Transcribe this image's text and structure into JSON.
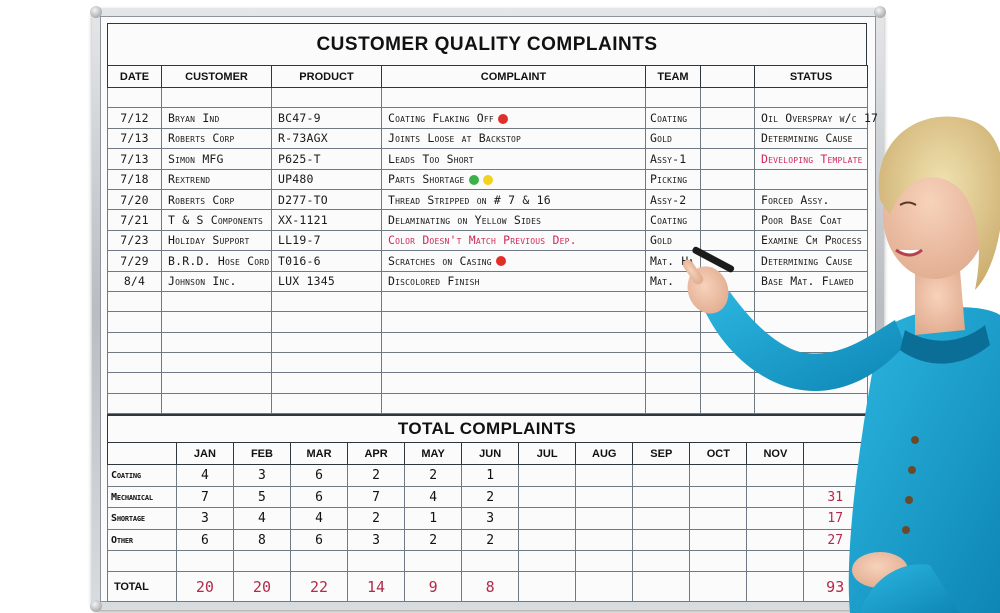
{
  "board": {
    "title": "CUSTOMER QUALITY COMPLAINTS",
    "headers": {
      "date": "DATE",
      "customer": "CUSTOMER",
      "product": "PRODUCT",
      "complaint": "COMPLAINT",
      "team": "TEAM",
      "extra": "",
      "status": "STATUS"
    },
    "rows": [
      {
        "date": "7/12",
        "customer": "Bryan Ind",
        "product": "BC47-9",
        "complaint": "Coating Flaking Off",
        "team": "Coating",
        "status": "Oil Overspray w/c 17"
      },
      {
        "date": "7/13",
        "customer": "Roberts Corp",
        "product": "R-73AGX",
        "complaint": "Joints Loose at Backstop",
        "team": "Gold",
        "status": "Determining Cause"
      },
      {
        "date": "7/13",
        "customer": "Simon MFG",
        "product": "P625-T",
        "complaint": "Leads Too Short",
        "team": "Assy-1",
        "status": "Developing Template"
      },
      {
        "date": "7/18",
        "customer": "Rextrend",
        "product": "UP480",
        "complaint": "Parts Shortage",
        "team": "Picking",
        "status": ""
      },
      {
        "date": "7/20",
        "customer": "Roberts Corp",
        "product": "D277-TO",
        "complaint": "Thread Stripped on # 7 & 16",
        "team": "Assy-2",
        "status": "Forced Assy."
      },
      {
        "date": "7/21",
        "customer": "T & S Components",
        "product": "XX-1121",
        "complaint": "Delaminating on Yellow Sides",
        "team": "Coating",
        "status": "Poor Base Coat"
      },
      {
        "date": "7/23",
        "customer": "Holiday Support",
        "product": "LL19-7",
        "complaint": "Color Doesn't Match Previous Dep.",
        "team": "Gold",
        "status": "Examine Cm Process"
      },
      {
        "date": "7/29",
        "customer": "B.R.D. Hose Cord",
        "product": "T016-6",
        "complaint": "Scratches on Casing",
        "team": "Mat. Ha",
        "status": "Determining Cause"
      },
      {
        "date": "8/4",
        "customer": "Johnson Inc.",
        "product": "LUX 1345",
        "complaint": "Discolored Finish",
        "team": "Mat.",
        "status": "Base Mat. Flawed"
      }
    ],
    "total_title": "TOTAL COMPLAINTS",
    "months": [
      "JAN",
      "FEB",
      "MAR",
      "APR",
      "MAY",
      "JUN",
      "JUL",
      "AUG",
      "SEP",
      "OCT",
      "NOV"
    ],
    "categories": [
      {
        "label": "Coating",
        "values": [
          "4",
          "3",
          "6",
          "2",
          "2",
          "1"
        ],
        "total": ""
      },
      {
        "label": "Mechanical",
        "values": [
          "7",
          "5",
          "6",
          "7",
          "4",
          "2"
        ],
        "total": "31"
      },
      {
        "label": "Shortage",
        "values": [
          "3",
          "4",
          "4",
          "2",
          "1",
          "3"
        ],
        "total": "17"
      },
      {
        "label": "Other",
        "values": [
          "6",
          "8",
          "6",
          "3",
          "2",
          "2"
        ],
        "total": "27"
      }
    ],
    "total_row": {
      "label": "TOTAL",
      "values": [
        "20",
        "20",
        "22",
        "14",
        "9",
        "8"
      ],
      "total": "93"
    },
    "colors": {
      "marker_red": "#d0285a",
      "dot_red": "#e03028",
      "dot_green": "#3bb14a",
      "dot_yellow": "#f2d21e",
      "jacket": "#1aa0cf"
    }
  }
}
